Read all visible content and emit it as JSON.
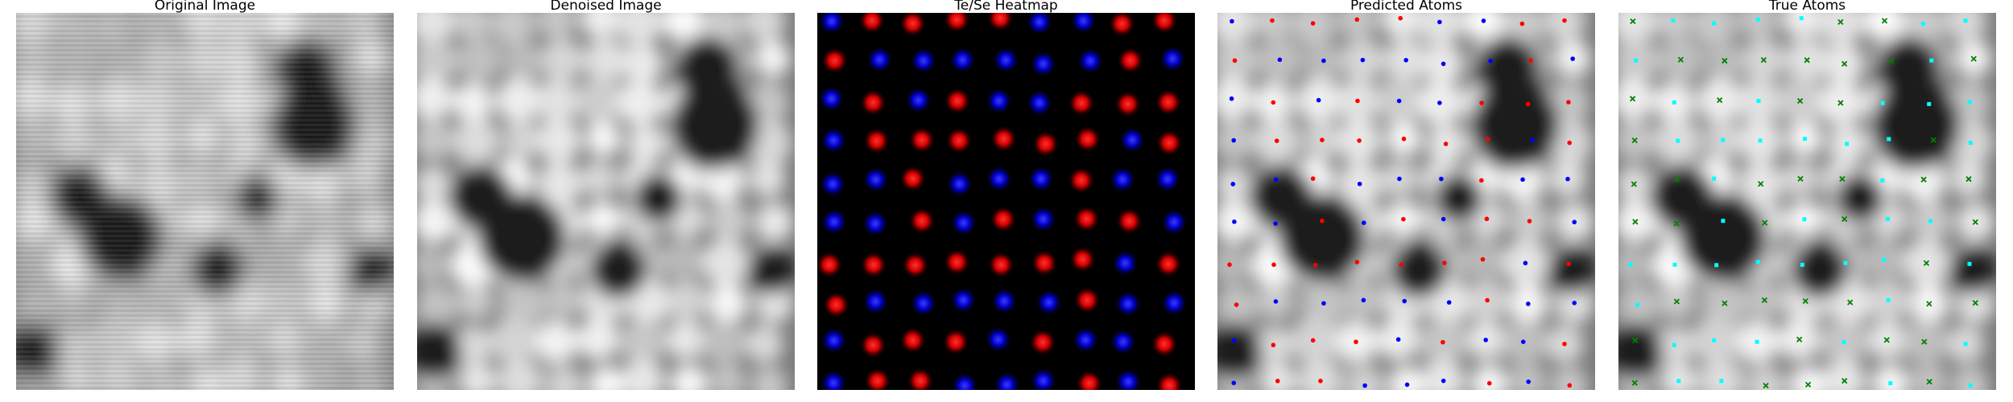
{
  "figure": {
    "panels": [
      {
        "id": "original",
        "title": "Original Image"
      },
      {
        "id": "denoised",
        "title": "Denoised Image"
      },
      {
        "id": "heatmap",
        "title": "Te/Se Heatmap"
      },
      {
        "id": "predicted",
        "title": "Predicted Atoms"
      },
      {
        "id": "true",
        "title": "True Atoms"
      }
    ]
  },
  "colors": {
    "te_heatmap": "#ff1a1a",
    "se_heatmap": "#1a1aff",
    "predicted_te": "#ff0000",
    "predicted_se": "#0000ff",
    "true_te": "#00ffff",
    "true_se": "#008000",
    "background": "#000000"
  }
}
